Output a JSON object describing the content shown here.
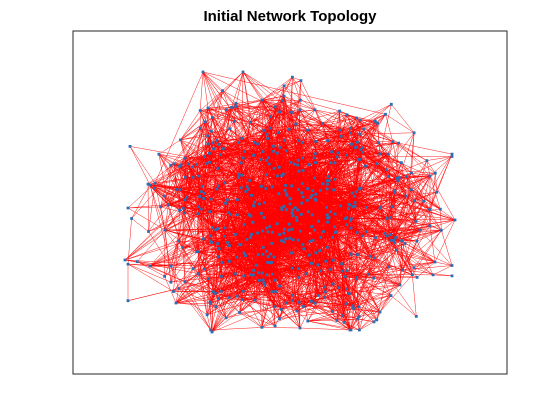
{
  "figure": {
    "title": "Initial Network Topology"
  },
  "graph": {
    "edge_color": "#ff0000",
    "node_color": "#2a6fb5",
    "axes_color": "#262626",
    "axes_background": "#ffffff"
  }
}
